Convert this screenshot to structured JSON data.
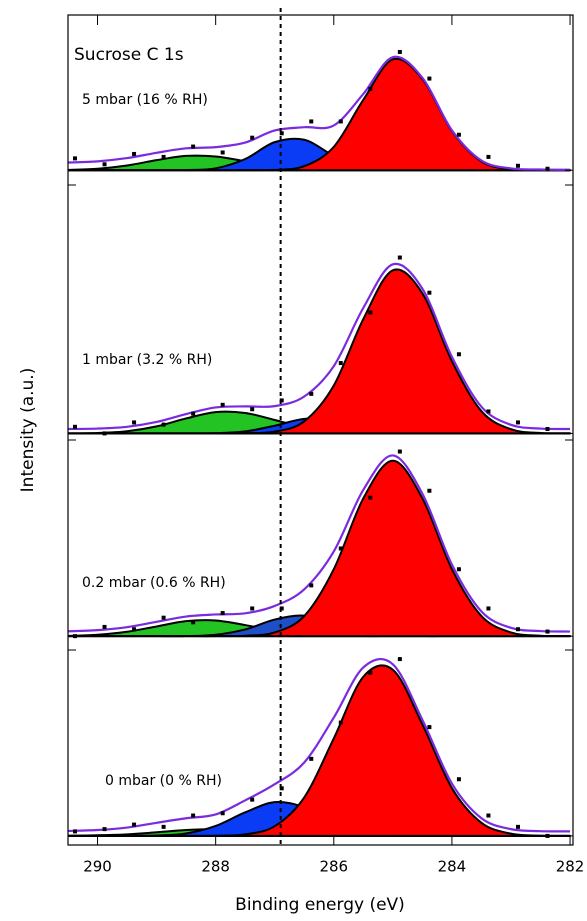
{
  "chart_data": [
    {
      "type": "area",
      "title": "Sucrose C 1s",
      "ylabel": "Intensity (a.u.)",
      "label": "5 mbar (16 % RH)",
      "vline": 286.9,
      "x": [
        290.5,
        290,
        289.5,
        289,
        288.5,
        288,
        287.5,
        287,
        286.5,
        286,
        285.5,
        285,
        284.5,
        284,
        283.5,
        283,
        282.5,
        282
      ],
      "xlim": [
        290.5,
        281.95
      ],
      "ylim": [
        -10,
        105
      ],
      "series": [
        {
          "type": "area",
          "color": "#22c322",
          "values": [
            0.2,
            1,
            3.2,
            6.8,
            9.7,
            9.3,
            6.1,
            2.7,
            0.8,
            0.2,
            0,
            0,
            0,
            0,
            0,
            0,
            0,
            0
          ]
        },
        {
          "type": "area",
          "color": "#0a3cf5",
          "values": [
            0,
            0,
            0,
            0,
            0.1,
            1.3,
            7.6,
            19,
            20.6,
            9.8,
            2,
            0.2,
            0,
            0,
            0,
            0,
            0,
            0
          ]
        },
        {
          "type": "area",
          "color": "#ff0000",
          "values": [
            0,
            0,
            0,
            0,
            0,
            0,
            0,
            0.2,
            2.7,
            15.8,
            47.6,
            75,
            61.7,
            26.5,
            5.9,
            0.7,
            0,
            0
          ]
        },
        {
          "type": "line",
          "color": "#7a2be0",
          "values": [
            5.2,
            6,
            8.2,
            11.8,
            14.8,
            15.6,
            18.7,
            26.9,
            29.1,
            30.3,
            51.6,
            76.5,
            62.5,
            27,
            6.5,
            1.2,
            0.5,
            0.3
          ]
        },
        {
          "type": "scatter",
          "color": "#000000",
          "values": [
            8,
            4,
            11,
            9,
            16,
            12,
            22,
            25,
            33,
            33,
            55,
            80,
            62,
            24,
            9,
            3,
            1,
            -2
          ]
        }
      ]
    },
    {
      "type": "area",
      "label": "1 mbar (3.2 % RH)",
      "x": [
        290.5,
        290,
        289.5,
        289,
        288.5,
        288,
        287.5,
        287,
        286.5,
        286,
        285.5,
        285,
        284.5,
        284,
        283.5,
        283,
        282.5,
        282
      ],
      "xlim": [
        290.5,
        281.95
      ],
      "ylim": [
        -3,
        113
      ],
      "series": [
        {
          "type": "area",
          "color": "#22c322",
          "values": [
            0,
            0.2,
            1,
            3.2,
            6.8,
            9.7,
            9.3,
            6.1,
            2.7,
            0.8,
            0.2,
            0,
            0,
            0,
            0,
            0,
            0,
            0
          ]
        },
        {
          "type": "area",
          "color": "#0a3cf5",
          "values": [
            0,
            0,
            0,
            0,
            0,
            0.1,
            0.9,
            3.5,
            6.6,
            6.2,
            2.9,
            0.7,
            0.1,
            0,
            0,
            0,
            0,
            0
          ]
        },
        {
          "type": "area",
          "color": "#ff0000",
          "values": [
            0,
            0,
            0,
            0,
            0,
            0,
            0.1,
            0.8,
            5.5,
            21.8,
            52,
            74.2,
            63.7,
            32.8,
            10.1,
            1.9,
            0.2,
            0
          ]
        },
        {
          "type": "line",
          "color": "#7a2be0",
          "values": [
            2,
            2.2,
            3,
            5.2,
            8.8,
            11.8,
            12.3,
            12.4,
            16.8,
            30.6,
            57.1,
            76.9,
            65.8,
            34.8,
            12.1,
            3.9,
            2.2,
            2
          ]
        },
        {
          "type": "scatter",
          "color": "#000000",
          "values": [
            3,
            0,
            5,
            4,
            9,
            13,
            11,
            15,
            18,
            32,
            55,
            80,
            64,
            36,
            10,
            5,
            2,
            1
          ]
        }
      ]
    },
    {
      "type": "area",
      "label": "0.2 mbar (0.6 % RH)",
      "x": [
        290.5,
        290,
        289.5,
        289,
        288.5,
        288,
        287.5,
        287,
        286.5,
        286,
        285.5,
        285,
        284.5,
        284,
        283.5,
        283,
        282.5,
        282
      ],
      "xlim": [
        290.5,
        281.95
      ],
      "ylim": [
        -6,
        85
      ],
      "series": [
        {
          "type": "area",
          "color": "#22c322",
          "values": [
            0.1,
            0.6,
            1.9,
            4.2,
            6.5,
            6.8,
            4.8,
            2.3,
            0.7,
            0.2,
            0,
            0,
            0,
            0,
            0,
            0,
            0,
            0
          ]
        },
        {
          "type": "area",
          "color": "#1f4fc8",
          "values": [
            0,
            0,
            0,
            0,
            0,
            0.6,
            2.9,
            7.2,
            8.9,
            5.5,
            1.7,
            0.3,
            0,
            0,
            0,
            0,
            0,
            0
          ]
        },
        {
          "type": "area",
          "color": "#ff0000",
          "values": [
            0,
            0,
            0,
            0,
            0,
            0,
            0.2,
            1.6,
            8.7,
            29,
            59.7,
            76,
            59.7,
            29,
            8.7,
            1.6,
            0.2,
            0
          ]
        },
        {
          "type": "line",
          "color": "#7a2be0",
          "values": [
            2.1,
            2.6,
            3.9,
            6.2,
            8.5,
            9.4,
            9.9,
            13.1,
            20.3,
            36.7,
            63.4,
            78.3,
            61.7,
            31,
            10.7,
            3.6,
            2.2,
            2
          ]
        },
        {
          "type": "scatter",
          "color": "#000000",
          "values": [
            0,
            4,
            3,
            8,
            6,
            10,
            12,
            12,
            22,
            38,
            60,
            80,
            63,
            29,
            12,
            3,
            2,
            1
          ]
        }
      ]
    },
    {
      "type": "area",
      "label": "0 mbar (0 % RH)",
      "xlabel": "Binding energy (eV)",
      "x": [
        290.5,
        290,
        289.5,
        289,
        288.5,
        288,
        287.5,
        287,
        286.5,
        286,
        285.5,
        285,
        284.5,
        284,
        283.5,
        283,
        282.5,
        282
      ],
      "xlim": [
        290.5,
        281.95
      ],
      "ylim": [
        -4,
        82
      ],
      "xticks": [
        290,
        288,
        286,
        284,
        282
      ],
      "series": [
        {
          "type": "area",
          "color": "#22c322",
          "values": [
            0.1,
            0.3,
            0.7,
            1.6,
            2.6,
            3,
            2.6,
            1.6,
            0.7,
            0.3,
            0.1,
            0,
            0,
            0,
            0,
            0,
            0,
            0
          ]
        },
        {
          "type": "area",
          "color": "#0a3cf5",
          "values": [
            0,
            0,
            0,
            0.2,
            1.1,
            4.4,
            10.4,
            14.9,
            12.7,
            6.6,
            2,
            0.4,
            0,
            0,
            0,
            0,
            0,
            0
          ]
        },
        {
          "type": "area",
          "color": "#ff0000",
          "values": [
            0,
            0,
            0,
            0,
            0,
            0.1,
            0.7,
            4.3,
            17,
            43,
            70.2,
            73.3,
            49.2,
            21.1,
            5.8,
            1,
            0.1,
            0
          ]
        },
        {
          "type": "line",
          "color": "#7a2be0",
          "values": [
            2.2,
            2.6,
            3.7,
            5.8,
            7.8,
            9.5,
            15.7,
            22.8,
            32.4,
            52.2,
            74.3,
            75.7,
            51.2,
            23.1,
            7.8,
            3,
            2.1,
            2
          ]
        },
        {
          "type": "scatter",
          "color": "#000000",
          "values": [
            2,
            3,
            5,
            4,
            9,
            10,
            16,
            21,
            34,
            50,
            72,
            78,
            48,
            25,
            9,
            4,
            0,
            1
          ]
        }
      ]
    }
  ]
}
